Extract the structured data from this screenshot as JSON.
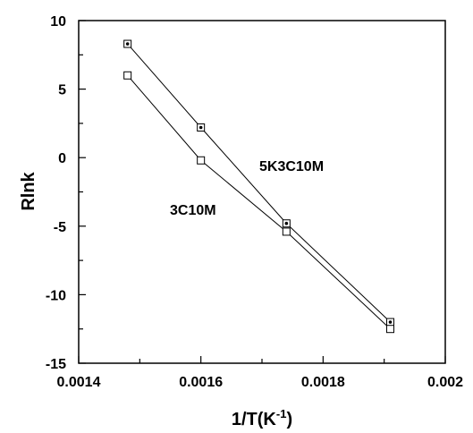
{
  "chart_data": {
    "type": "line",
    "title": "",
    "xlabel": "1/T(K",
    "xlabel_sup": "-1",
    "xlabel_close": ")",
    "ylabel": "Rlnk",
    "xlim": [
      0.0014,
      0.002
    ],
    "ylim": [
      -15,
      10
    ],
    "xticks": [
      0.0014,
      0.0016,
      0.0018,
      0.002
    ],
    "xtick_labels": [
      "0.0014",
      "0.0016",
      "0.0018",
      "0.002"
    ],
    "yticks": [
      -15,
      -10,
      -5,
      0,
      5,
      10
    ],
    "ytick_labels": [
      "-15",
      "-10",
      "-5",
      "0",
      "5",
      "10"
    ],
    "grid": false,
    "legend": "none",
    "annotations": [
      "5K3C10M",
      "3C10M"
    ],
    "series": [
      {
        "name": "5K3C10M",
        "marker": "square-dotted",
        "x": [
          0.00148,
          0.0016,
          0.00174,
          0.00191
        ],
        "y": [
          8.3,
          2.2,
          -4.8,
          -12.0
        ]
      },
      {
        "name": "3C10M",
        "marker": "square-open",
        "x": [
          0.00148,
          0.0016,
          0.00174,
          0.00191
        ],
        "y": [
          6.0,
          -0.2,
          -5.4,
          -12.5
        ]
      }
    ],
    "colors": {
      "line": "#000000",
      "marker_fill": "#ffffff",
      "background": "#ffffff"
    }
  }
}
